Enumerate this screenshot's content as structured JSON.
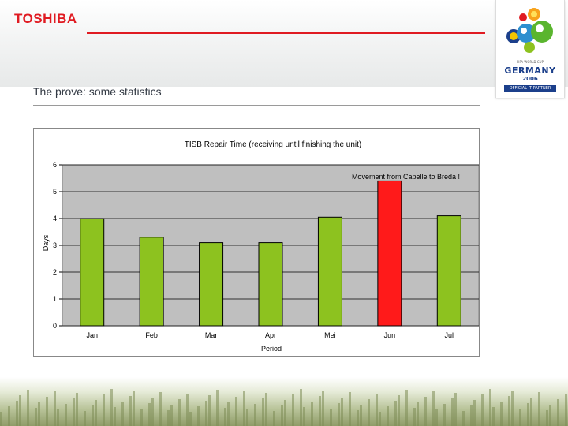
{
  "header": {
    "brand": "TOSHIBA",
    "slide_title": "The prove: some statistics",
    "colors": {
      "brand_red": "#e01b22",
      "badge_blue": "#1b3f8b"
    }
  },
  "badge": {
    "line1": "FIFA WORLD CUP",
    "line2": "GERMANY",
    "line3": "2006",
    "line4": "OFFICIAL IT PARTNER",
    "icon": "world-cup-2006-emblem"
  },
  "chart_data": {
    "type": "bar",
    "title": "TISB Repair Time (receiving until finishing the unit)",
    "xlabel": "Period",
    "ylabel": "Days",
    "categories": [
      "Jan",
      "Feb",
      "Mar",
      "Apr",
      "Mei",
      "Jun",
      "Jul"
    ],
    "values": [
      4.0,
      3.3,
      3.1,
      3.1,
      4.05,
      5.4,
      4.1
    ],
    "bar_colors": [
      "#8dc21f",
      "#8dc21f",
      "#8dc21f",
      "#8dc21f",
      "#8dc21f",
      "#ff1a1a",
      "#8dc21f"
    ],
    "ylim": [
      0,
      6
    ],
    "yticks": [
      "0",
      "1",
      "2",
      "3",
      "4",
      "5",
      "6"
    ],
    "grid": true,
    "plot_background": "#bfbfbf",
    "annotation": "Movement from Capelle to Breda !"
  }
}
